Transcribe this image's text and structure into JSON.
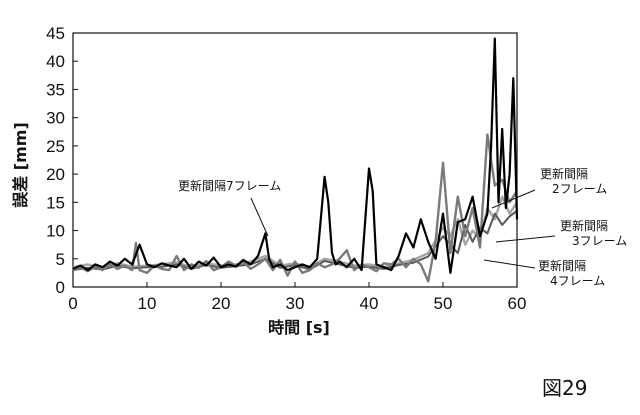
{
  "figure_label": "図29",
  "chart_data": {
    "type": "line",
    "title": "",
    "xlabel": "時間 [s]",
    "ylabel": "誤差 [mm]",
    "xlim": [
      0,
      60
    ],
    "ylim": [
      0,
      45
    ],
    "xticks": [
      0,
      10,
      20,
      30,
      40,
      50,
      60
    ],
    "yticks": [
      0,
      5,
      10,
      15,
      20,
      25,
      30,
      35,
      40,
      45
    ],
    "grid": "none",
    "legend": "none",
    "series": [
      {
        "name": "更新間隔7フレーム",
        "color": "#000000",
        "x": [
          0,
          1,
          2,
          3,
          4,
          5,
          6,
          7,
          8,
          9,
          10,
          11,
          12,
          13,
          14,
          15,
          16,
          17,
          18,
          19,
          20,
          21,
          22,
          23,
          24,
          25,
          26,
          26.5,
          27,
          28,
          29,
          30,
          31,
          32,
          33,
          34,
          34.5,
          35,
          35.5,
          36,
          37,
          38,
          39,
          40,
          40.5,
          41,
          42,
          43,
          44,
          45,
          46,
          47,
          48,
          49,
          50,
          51,
          52,
          53,
          54,
          55,
          56,
          56.5,
          57,
          57.5,
          58,
          58.5,
          59,
          59.5,
          60
        ],
        "y": [
          3.2,
          3.8,
          3.0,
          4.0,
          3.5,
          4.5,
          3.8,
          5.0,
          4.0,
          7.5,
          4.0,
          3.5,
          4.2,
          3.8,
          3.5,
          5.0,
          3.2,
          4.5,
          3.8,
          5.2,
          3.5,
          4.0,
          3.6,
          4.8,
          4.0,
          5.5,
          9.5,
          5.0,
          3.5,
          4.0,
          3.0,
          3.5,
          4.0,
          3.5,
          5.0,
          19.5,
          15.0,
          6.0,
          4.0,
          4.5,
          3.5,
          5.0,
          3.0,
          21.0,
          17.0,
          4.0,
          3.5,
          3.0,
          5.5,
          9.5,
          7.0,
          12.0,
          8.0,
          5.0,
          13.0,
          2.5,
          11.5,
          12.0,
          16.0,
          9.0,
          13.0,
          25.0,
          44.0,
          15.0,
          28.0,
          14.0,
          20.0,
          37.0,
          12.0
        ]
      },
      {
        "name": "更新間隔2フレーム",
        "color": "#7a7a7a",
        "x": [
          0,
          1,
          2,
          3,
          4,
          5,
          6,
          7,
          8,
          8.5,
          9,
          10,
          11,
          12,
          13,
          14,
          15,
          16,
          17,
          18,
          19,
          20,
          21,
          22,
          23,
          24,
          25,
          26,
          27,
          28,
          29,
          30,
          31,
          32,
          33,
          34,
          35,
          36,
          37,
          38,
          39,
          40,
          41,
          42,
          43,
          44,
          45,
          46,
          47,
          48,
          49,
          50,
          51,
          52,
          53,
          54,
          55,
          56,
          57,
          58,
          59,
          60
        ],
        "y": [
          3.0,
          3.5,
          2.8,
          3.6,
          3.0,
          4.0,
          3.2,
          3.8,
          3.0,
          7.8,
          3.0,
          2.5,
          3.8,
          3.2,
          3.0,
          5.5,
          3.0,
          4.0,
          3.4,
          4.6,
          3.0,
          3.5,
          4.5,
          3.8,
          4.5,
          3.2,
          4.0,
          5.0,
          3.0,
          4.8,
          2.0,
          4.5,
          2.5,
          3.0,
          4.2,
          3.5,
          4.0,
          5.0,
          6.5,
          3.0,
          4.0,
          3.5,
          2.8,
          4.2,
          4.0,
          5.0,
          3.5,
          5.0,
          4.0,
          1.0,
          8.0,
          22.0,
          6.0,
          16.0,
          9.0,
          14.0,
          7.0,
          27.0,
          18.0,
          19.0,
          15.0,
          17.0
        ]
      },
      {
        "name": "更新間隔3フレーム",
        "color": "#a5a5a5",
        "x": [
          0,
          2,
          4,
          6,
          8,
          10,
          12,
          14,
          16,
          18,
          20,
          22,
          24,
          26,
          28,
          30,
          32,
          34,
          36,
          38,
          40,
          42,
          44,
          46,
          48,
          50,
          51,
          52,
          53,
          54,
          55,
          56,
          57,
          58,
          59,
          60
        ],
        "y": [
          3.5,
          4.0,
          3.3,
          4.2,
          3.6,
          3.8,
          4.0,
          4.4,
          3.5,
          4.2,
          3.8,
          4.0,
          4.5,
          5.5,
          3.8,
          4.2,
          3.5,
          5.0,
          4.5,
          3.8,
          4.0,
          3.5,
          4.2,
          4.8,
          6.0,
          10.5,
          9.0,
          12.0,
          7.5,
          10.0,
          8.5,
          14.0,
          12.0,
          16.0,
          13.0,
          15.0
        ]
      },
      {
        "name": "更新間隔4フレーム",
        "color": "#595959",
        "x": [
          0,
          2,
          4,
          6,
          8,
          10,
          12,
          14,
          16,
          18,
          20,
          22,
          24,
          26,
          28,
          30,
          32,
          34,
          36,
          38,
          40,
          42,
          44,
          46,
          48,
          50,
          51,
          52,
          53,
          54,
          55,
          56,
          57,
          58,
          59,
          60
        ],
        "y": [
          3.0,
          3.4,
          3.1,
          3.8,
          3.3,
          3.5,
          3.6,
          4.0,
          3.2,
          3.9,
          3.4,
          3.7,
          4.0,
          5.0,
          3.4,
          3.9,
          3.1,
          4.6,
          4.0,
          3.4,
          3.6,
          3.2,
          3.9,
          4.3,
          5.4,
          9.0,
          7.5,
          6.0,
          11.0,
          8.0,
          10.5,
          9.5,
          13.0,
          11.0,
          12.5,
          13.5
        ]
      }
    ],
    "annotations": [
      {
        "text": "更新間隔7フレーム",
        "series": "更新間隔7フレーム"
      },
      {
        "text": "更新間隔\n2フレーム",
        "series": "更新間隔2フレーム"
      },
      {
        "text": "更新間隔\n3フレーム",
        "series": "更新間隔3フレーム"
      },
      {
        "text": "更新間隔\n4フレーム",
        "series": "更新間隔4フレーム"
      }
    ]
  }
}
